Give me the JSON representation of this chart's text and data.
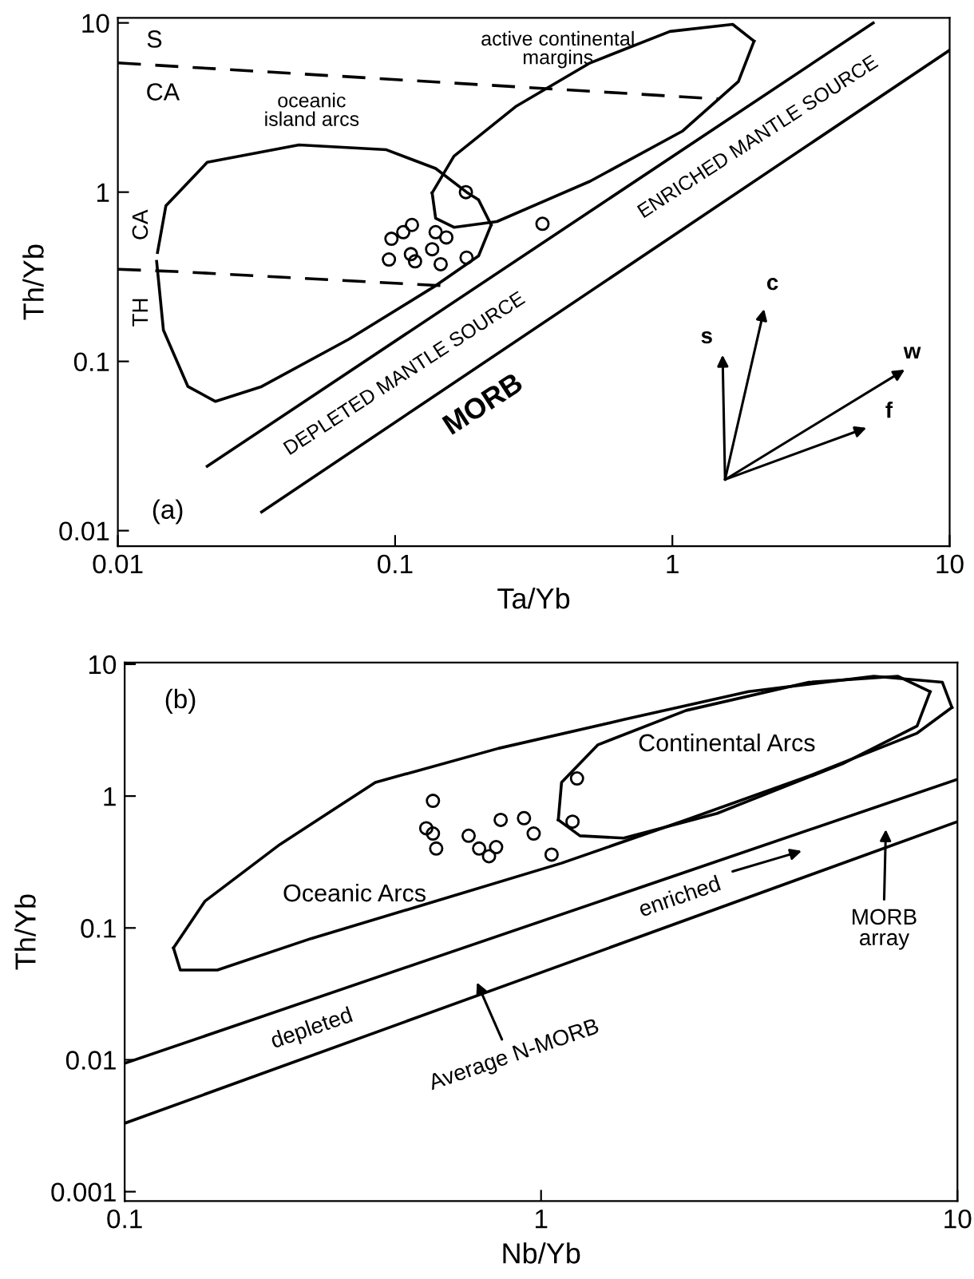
{
  "chart_data": [
    {
      "type": "scatter",
      "xlabel": "Ta/Yb",
      "ylabel": "Th/Yb",
      "log": "xy",
      "xlim": [
        0.01,
        10
      ],
      "ylim": [
        0.0081,
        10.7
      ],
      "xticks": [
        0.01,
        0.1,
        1,
        10
      ],
      "yticks": [
        0.01,
        0.1,
        1,
        10
      ],
      "marker": "circle",
      "series": [
        {
          "color": "#000000",
          "x": [
            0.18,
            0.34,
            0.115,
            0.107,
            0.097,
            0.14,
            0.153,
            0.095,
            0.114,
            0.118,
            0.136,
            0.146,
            0.181
          ],
          "values": [
            1.0,
            0.65,
            0.64,
            0.58,
            0.53,
            0.58,
            0.54,
            0.4,
            0.43,
            0.39,
            0.46,
            0.375,
            0.41
          ]
        },
        {
          "type": "line",
          "color": "#000000",
          "marker": "none",
          "x": [
            0.021,
            5.3
          ],
          "values": [
            0.024,
            10
          ]
        },
        {
          "type": "line",
          "color": "#000000",
          "marker": "none",
          "x": [
            0.033,
            10
          ],
          "values": [
            0.0129,
            6.9
          ]
        },
        {
          "type": "line",
          "color": "#000000",
          "marker": "none",
          "line_style": "dashed",
          "x": [
            0.01,
            1.48
          ],
          "values": [
            5.8,
            3.55
          ]
        },
        {
          "type": "line",
          "color": "#000000",
          "marker": "none",
          "line_style": "dashed",
          "x": [
            0.01,
            0.016,
            0.147
          ],
          "values": [
            0.35,
            0.34,
            0.28
          ]
        },
        {
          "type": "line",
          "color": "#000000",
          "marker": "none",
          "x": [
            0.0139,
            0.0149,
            0.021,
            0.045,
            0.093,
            0.14,
            0.181,
            0.2,
            0.222
          ],
          "values": [
            0.44,
            0.83,
            1.5,
            1.9,
            1.78,
            1.38,
            1.0,
            0.9,
            0.64
          ]
        },
        {
          "type": "line",
          "color": "#000000",
          "marker": "none",
          "x": [
            0.0138,
            0.0146,
            0.0179,
            0.0225,
            0.033,
            0.068,
            0.14,
            0.2,
            0.222
          ],
          "values": [
            0.39,
            0.153,
            0.071,
            0.058,
            0.071,
            0.135,
            0.28,
            0.42,
            0.64
          ]
        },
        {
          "type": "line",
          "color": "#000000",
          "marker": "none",
          "x": [
            0.136,
            0.163,
            0.272,
            0.505,
            0.98,
            1.65,
            1.97
          ],
          "values": [
            0.99,
            1.63,
            3.2,
            5.8,
            8.9,
            9.8,
            7.8
          ]
        },
        {
          "type": "line",
          "color": "#000000",
          "marker": "none",
          "x": [
            0.136,
            0.14,
            0.163,
            0.233,
            0.505,
            1.09,
            1.73,
            1.97
          ],
          "values": [
            0.99,
            0.7,
            0.62,
            0.67,
            1.16,
            2.3,
            4.5,
            7.8
          ]
        }
      ],
      "annotations": [
        "S",
        "CA",
        "oceanic\nisland arcs",
        "active continental\nmargins",
        "CA",
        "TH",
        "DEPLETED MANTLE SOURCE",
        "ENRICHED MANTLE SOURCE",
        "MORB",
        "(a)",
        "s",
        "c",
        "w",
        "f"
      ]
    },
    {
      "type": "scatter",
      "xlabel": "Nb/Yb",
      "ylabel": "Th/Yb",
      "log": "xy",
      "xlim": [
        0.1,
        10
      ],
      "ylim": [
        0.00085,
        10.3
      ],
      "xticks": [
        0.1,
        1,
        10
      ],
      "yticks": [
        0.001,
        0.01,
        0.1,
        1,
        10
      ],
      "marker": "circle",
      "series": [
        {
          "color": "#000000",
          "x": [
            0.55,
            0.53,
            0.55,
            0.56,
            0.67,
            0.71,
            0.75,
            0.78,
            0.8,
            0.91,
            0.96,
            1.06,
            1.19,
            1.22
          ],
          "values": [
            0.92,
            0.57,
            0.52,
            0.4,
            0.5,
            0.4,
            0.35,
            0.41,
            0.66,
            0.68,
            0.52,
            0.36,
            0.64,
            1.36
          ]
        },
        {
          "type": "line",
          "color": "#000000",
          "marker": "none",
          "x": [
            0.1,
            10
          ],
          "values": [
            0.0094,
            1.34
          ]
        },
        {
          "type": "line",
          "color": "#000000",
          "marker": "none",
          "x": [
            0.1,
            10
          ],
          "values": [
            0.0033,
            0.64
          ]
        },
        {
          "type": "line",
          "color": "#000000",
          "marker": "none",
          "x": [
            0.131,
            0.156,
            0.236,
            0.4,
            0.79,
            1.58,
            3.15,
            6.3,
            9.2,
            9.7
          ],
          "values": [
            0.0705,
            0.16,
            0.43,
            1.27,
            2.3,
            3.8,
            6.2,
            8.1,
            7.3,
            4.7
          ]
        },
        {
          "type": "line",
          "color": "#000000",
          "marker": "none",
          "x": [
            0.131,
            0.136,
            0.167,
            0.28,
            0.56,
            1.12,
            2.23,
            4.4,
            8.0,
            9.7
          ],
          "values": [
            0.0705,
            0.048,
            0.048,
            0.083,
            0.16,
            0.31,
            0.66,
            1.42,
            3.0,
            4.7
          ]
        },
        {
          "type": "line",
          "color": "#000000",
          "marker": "none",
          "x": [
            1.1,
            1.12,
            1.37,
            2.23,
            4.4,
            7.2,
            8.6
          ],
          "values": [
            0.66,
            1.27,
            2.45,
            4.46,
            7.3,
            8.1,
            6.2
          ]
        },
        {
          "type": "line",
          "color": "#000000",
          "marker": "none",
          "x": [
            1.1,
            1.24,
            1.58,
            2.65,
            5.3,
            8.0,
            8.6
          ],
          "values": [
            0.66,
            0.5,
            0.48,
            0.74,
            1.76,
            3.4,
            6.2
          ]
        }
      ],
      "annotations": [
        "(b)",
        "Continental Arcs",
        "Oceanic Arcs",
        "depleted",
        "enriched",
        "Average N-MORB",
        "MORB\narray"
      ]
    }
  ]
}
